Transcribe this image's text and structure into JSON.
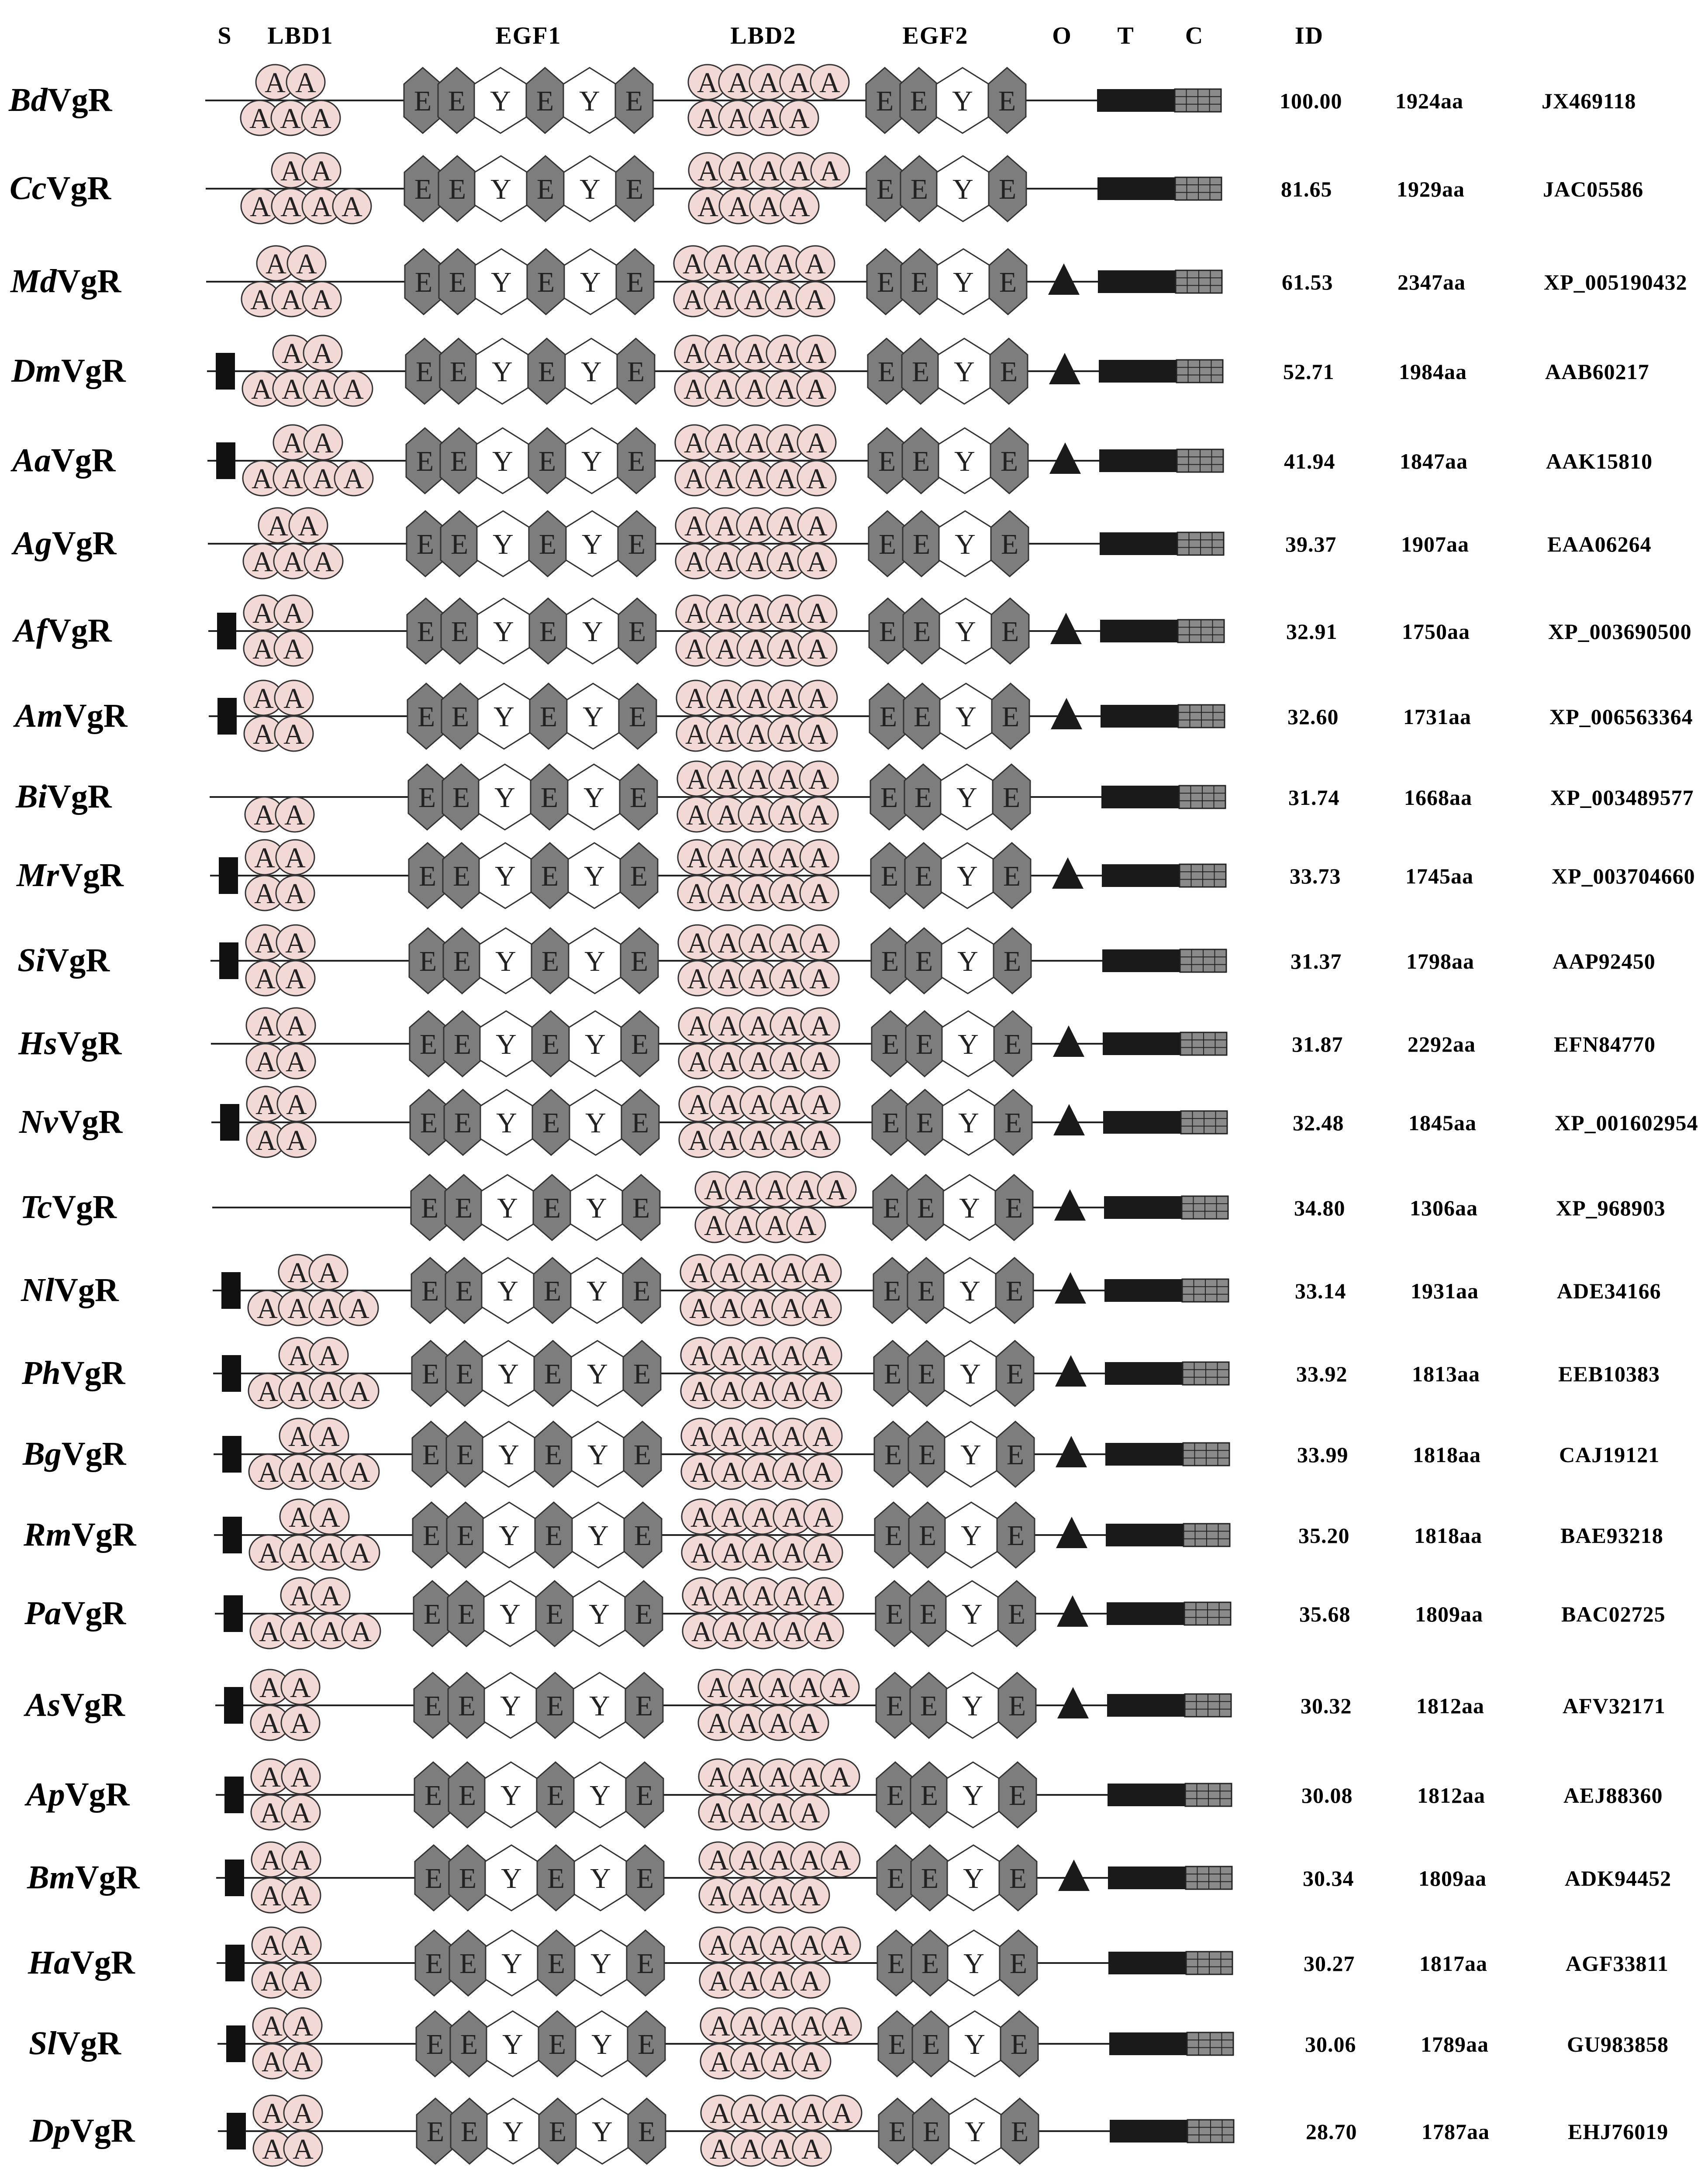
{
  "headers": {
    "s": "S",
    "lbd1": "LBD1",
    "egf1": "EGF1",
    "lbd2": "LBD2",
    "egf2": "EGF2",
    "o": "O",
    "t": "T",
    "c": "C",
    "id": "ID"
  },
  "symbols": {
    "ldl_repeat": "A",
    "egf_domain": "E",
    "ywxd_domain": "Y"
  },
  "colors": {
    "ldl_fill": "#f2d9d6",
    "egf_fill": "#7d7d7d",
    "ywxd_fill": "#ffffff",
    "transmembrane": "#1a1a1a",
    "cytoplasmic": "#8a8a8a",
    "signal": "#111111"
  },
  "rows": [
    {
      "abbr": "Bd",
      "suffix": "VgR",
      "identity": "100.00",
      "length": "1924aa",
      "accession": "JX469118",
      "signal": false,
      "lbd1": [
        2,
        3
      ],
      "lbd2": [
        5,
        4
      ],
      "o_glyc": false
    },
    {
      "abbr": "Cc",
      "suffix": "VgR",
      "identity": "81.65",
      "length": "1929aa",
      "accession": "JAC05586",
      "signal": false,
      "lbd1": [
        2,
        4
      ],
      "lbd2": [
        5,
        4
      ],
      "o_glyc": false
    },
    {
      "abbr": "Md",
      "suffix": "VgR",
      "identity": "61.53",
      "length": "2347aa",
      "accession": "XP_005190432",
      "signal": false,
      "lbd1": [
        2,
        3
      ],
      "lbd2": [
        5,
        5
      ],
      "o_glyc": true
    },
    {
      "abbr": "Dm",
      "suffix": "VgR",
      "identity": "52.71",
      "length": "1984aa",
      "accession": "AAB60217",
      "signal": true,
      "lbd1": [
        2,
        4
      ],
      "lbd2": [
        5,
        5
      ],
      "o_glyc": true
    },
    {
      "abbr": "Aa",
      "suffix": "VgR",
      "identity": "41.94",
      "length": "1847aa",
      "accession": "AAK15810",
      "signal": true,
      "lbd1": [
        2,
        4
      ],
      "lbd2": [
        5,
        5
      ],
      "o_glyc": true
    },
    {
      "abbr": "Ag",
      "suffix": "VgR",
      "identity": "39.37",
      "length": "1907aa",
      "accession": "EAA06264",
      "signal": false,
      "lbd1": [
        2,
        3
      ],
      "lbd2": [
        5,
        5
      ],
      "o_glyc": false
    },
    {
      "abbr": "Af",
      "suffix": "VgR",
      "identity": "32.91",
      "length": "1750aa",
      "accession": "XP_003690500",
      "signal": true,
      "lbd1": [
        2,
        2
      ],
      "lbd2": [
        5,
        5
      ],
      "o_glyc": true
    },
    {
      "abbr": "Am",
      "suffix": "VgR",
      "identity": "32.60",
      "length": "1731aa",
      "accession": "XP_006563364",
      "signal": true,
      "lbd1": [
        2,
        2
      ],
      "lbd2": [
        5,
        5
      ],
      "o_glyc": true
    },
    {
      "abbr": "Bi",
      "suffix": "VgR",
      "identity": "31.74",
      "length": "1668aa",
      "accession": "XP_003489577",
      "signal": false,
      "lbd1": [
        0,
        2
      ],
      "lbd2": [
        5,
        5
      ],
      "o_glyc": false
    },
    {
      "abbr": "Mr",
      "suffix": "VgR",
      "identity": "33.73",
      "length": "1745aa",
      "accession": "XP_003704660",
      "signal": true,
      "lbd1": [
        2,
        2
      ],
      "lbd2": [
        5,
        5
      ],
      "o_glyc": true
    },
    {
      "abbr": "Si",
      "suffix": "VgR",
      "identity": "31.37",
      "length": "1798aa",
      "accession": "AAP92450",
      "signal": true,
      "lbd1": [
        2,
        2
      ],
      "lbd2": [
        5,
        5
      ],
      "o_glyc": false
    },
    {
      "abbr": "Hs",
      "suffix": "VgR",
      "identity": "31.87",
      "length": "2292aa",
      "accession": "EFN84770",
      "signal": false,
      "lbd1": [
        2,
        2
      ],
      "lbd2": [
        5,
        5
      ],
      "o_glyc": true
    },
    {
      "abbr": "Nv",
      "suffix": "VgR",
      "identity": "32.48",
      "length": "1845aa",
      "accession": "XP_001602954",
      "signal": true,
      "lbd1": [
        2,
        2
      ],
      "lbd2": [
        5,
        5
      ],
      "o_glyc": true
    },
    {
      "abbr": "Tc",
      "suffix": "VgR",
      "identity": "34.80",
      "length": "1306aa",
      "accession": "XP_968903",
      "signal": false,
      "lbd1": [
        0,
        0
      ],
      "lbd2": [
        5,
        4
      ],
      "o_glyc": true
    },
    {
      "abbr": "Nl",
      "suffix": "VgR",
      "identity": "33.14",
      "length": "1931aa",
      "accession": "ADE34166",
      "signal": true,
      "lbd1": [
        2,
        4
      ],
      "lbd2": [
        5,
        5
      ],
      "o_glyc": true
    },
    {
      "abbr": "Ph",
      "suffix": "VgR",
      "identity": "33.92",
      "length": "1813aa",
      "accession": "EEB10383",
      "signal": true,
      "lbd1": [
        2,
        4
      ],
      "lbd2": [
        5,
        5
      ],
      "o_glyc": true
    },
    {
      "abbr": "Bg",
      "suffix": "VgR",
      "identity": "33.99",
      "length": "1818aa",
      "accession": "CAJ19121",
      "signal": true,
      "lbd1": [
        2,
        4
      ],
      "lbd2": [
        5,
        5
      ],
      "o_glyc": true
    },
    {
      "abbr": "Rm",
      "suffix": "VgR",
      "identity": "35.20",
      "length": "1818aa",
      "accession": "BAE93218",
      "signal": true,
      "lbd1": [
        2,
        4
      ],
      "lbd2": [
        5,
        5
      ],
      "o_glyc": true
    },
    {
      "abbr": "Pa",
      "suffix": "VgR",
      "identity": "35.68",
      "length": "1809aa",
      "accession": "BAC02725",
      "signal": true,
      "lbd1": [
        2,
        4
      ],
      "lbd2": [
        5,
        5
      ],
      "o_glyc": true
    },
    {
      "abbr": "As",
      "suffix": "VgR",
      "identity": "30.32",
      "length": "1812aa",
      "accession": "AFV32171",
      "signal": true,
      "lbd1": [
        2,
        2
      ],
      "lbd2": [
        5,
        4
      ],
      "o_glyc": true
    },
    {
      "abbr": "Ap",
      "suffix": "VgR",
      "identity": "30.08",
      "length": "1812aa",
      "accession": "AEJ88360",
      "signal": true,
      "lbd1": [
        2,
        2
      ],
      "lbd2": [
        5,
        4
      ],
      "o_glyc": false
    },
    {
      "abbr": "Bm",
      "suffix": "VgR",
      "identity": "30.34",
      "length": "1809aa",
      "accession": "ADK94452",
      "signal": true,
      "lbd1": [
        2,
        2
      ],
      "lbd2": [
        5,
        4
      ],
      "o_glyc": true
    },
    {
      "abbr": "Ha",
      "suffix": "VgR",
      "identity": "30.27",
      "length": "1817aa",
      "accession": "AGF33811",
      "signal": true,
      "lbd1": [
        2,
        2
      ],
      "lbd2": [
        5,
        4
      ],
      "o_glyc": false
    },
    {
      "abbr": "Sl",
      "suffix": "VgR",
      "identity": "30.06",
      "length": "1789aa",
      "accession": "GU983858",
      "signal": true,
      "lbd1": [
        2,
        2
      ],
      "lbd2": [
        5,
        4
      ],
      "o_glyc": false
    },
    {
      "abbr": "Dp",
      "suffix": "VgR",
      "identity": "28.70",
      "length": "1787aa",
      "accession": "EHJ76019",
      "signal": true,
      "lbd1": [
        2,
        2
      ],
      "lbd2": [
        5,
        4
      ],
      "o_glyc": false
    }
  ]
}
